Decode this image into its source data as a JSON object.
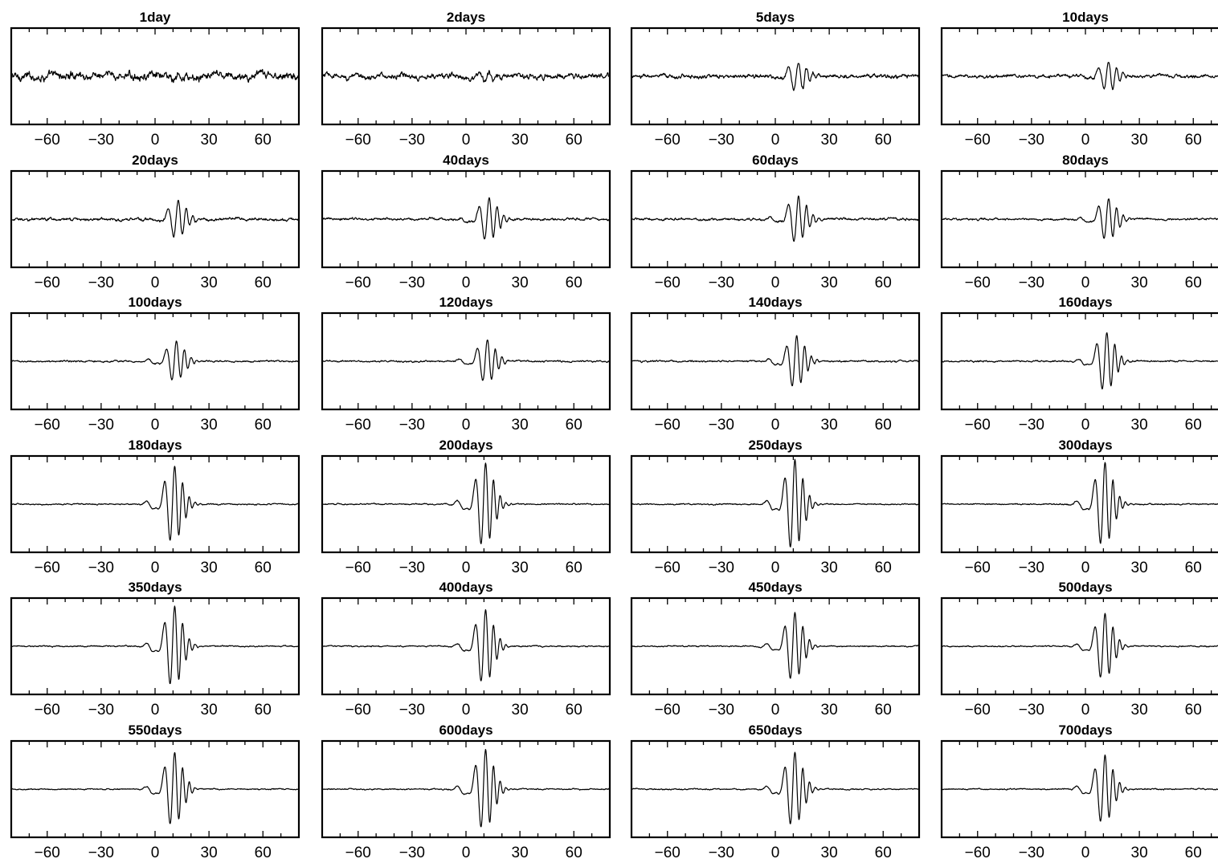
{
  "chart_data": {
    "type": "line",
    "layout": "4 columns x 6 rows of small panels",
    "xlim": [
      -80,
      80
    ],
    "xticks": [
      -60,
      -30,
      0,
      30,
      60
    ],
    "xtick_labels": [
      "−60",
      "−30",
      "0",
      "30",
      "60"
    ],
    "ylim": [
      -1,
      1
    ],
    "grid": false,
    "color": "#000000",
    "panels": [
      {
        "title": "1day",
        "days": 1,
        "arrival": 12,
        "amplitude": 0.06,
        "noise": 0.1,
        "width": 5
      },
      {
        "title": "2days",
        "days": 2,
        "arrival": 12,
        "amplitude": 0.08,
        "noise": 0.07,
        "width": 5
      },
      {
        "title": "5days",
        "days": 5,
        "arrival": 12,
        "amplitude": 0.3,
        "noise": 0.05,
        "width": 5
      },
      {
        "title": "10days",
        "days": 10,
        "arrival": 12,
        "amplitude": 0.3,
        "noise": 0.04,
        "width": 5
      },
      {
        "title": "20days",
        "days": 20,
        "arrival": 12,
        "amplitude": 0.38,
        "noise": 0.035,
        "width": 5
      },
      {
        "title": "40days",
        "days": 40,
        "arrival": 12,
        "amplitude": 0.45,
        "noise": 0.03,
        "width": 5
      },
      {
        "title": "60days",
        "days": 60,
        "arrival": 12,
        "amplitude": 0.48,
        "noise": 0.03,
        "width": 5
      },
      {
        "title": "80days",
        "days": 80,
        "arrival": 12,
        "amplitude": 0.45,
        "noise": 0.025,
        "width": 5
      },
      {
        "title": "100days",
        "days": 100,
        "arrival": 11,
        "amplitude": 0.42,
        "noise": 0.02,
        "width": 5
      },
      {
        "title": "120days",
        "days": 120,
        "arrival": 11,
        "amplitude": 0.45,
        "noise": 0.02,
        "width": 5
      },
      {
        "title": "140days",
        "days": 140,
        "arrival": 11,
        "amplitude": 0.55,
        "noise": 0.02,
        "width": 5
      },
      {
        "title": "160days",
        "days": 160,
        "arrival": 11,
        "amplitude": 0.62,
        "noise": 0.02,
        "width": 5
      },
      {
        "title": "180days",
        "days": 180,
        "arrival": 10,
        "amplitude": 0.8,
        "noise": 0.015,
        "width": 5
      },
      {
        "title": "200days",
        "days": 200,
        "arrival": 10,
        "amplitude": 0.88,
        "noise": 0.015,
        "width": 5
      },
      {
        "title": "250days",
        "days": 250,
        "arrival": 10,
        "amplitude": 0.95,
        "noise": 0.015,
        "width": 5
      },
      {
        "title": "300days",
        "days": 300,
        "arrival": 10,
        "amplitude": 0.88,
        "noise": 0.015,
        "width": 5
      },
      {
        "title": "350days",
        "days": 350,
        "arrival": 10,
        "amplitude": 0.85,
        "noise": 0.015,
        "width": 5
      },
      {
        "title": "400days",
        "days": 400,
        "arrival": 10,
        "amplitude": 0.78,
        "noise": 0.015,
        "width": 5
      },
      {
        "title": "450days",
        "days": 450,
        "arrival": 10,
        "amplitude": 0.72,
        "noise": 0.015,
        "width": 5
      },
      {
        "title": "500days",
        "days": 500,
        "arrival": 10,
        "amplitude": 0.7,
        "noise": 0.015,
        "width": 5
      },
      {
        "title": "550days",
        "days": 550,
        "arrival": 10,
        "amplitude": 0.78,
        "noise": 0.015,
        "width": 5
      },
      {
        "title": "600days",
        "days": 600,
        "arrival": 10,
        "amplitude": 0.85,
        "noise": 0.015,
        "width": 5
      },
      {
        "title": "650days",
        "days": 650,
        "arrival": 10,
        "amplitude": 0.78,
        "noise": 0.015,
        "width": 5
      },
      {
        "title": "700days",
        "days": 700,
        "arrival": 10,
        "amplitude": 0.72,
        "noise": 0.015,
        "width": 5
      }
    ]
  }
}
